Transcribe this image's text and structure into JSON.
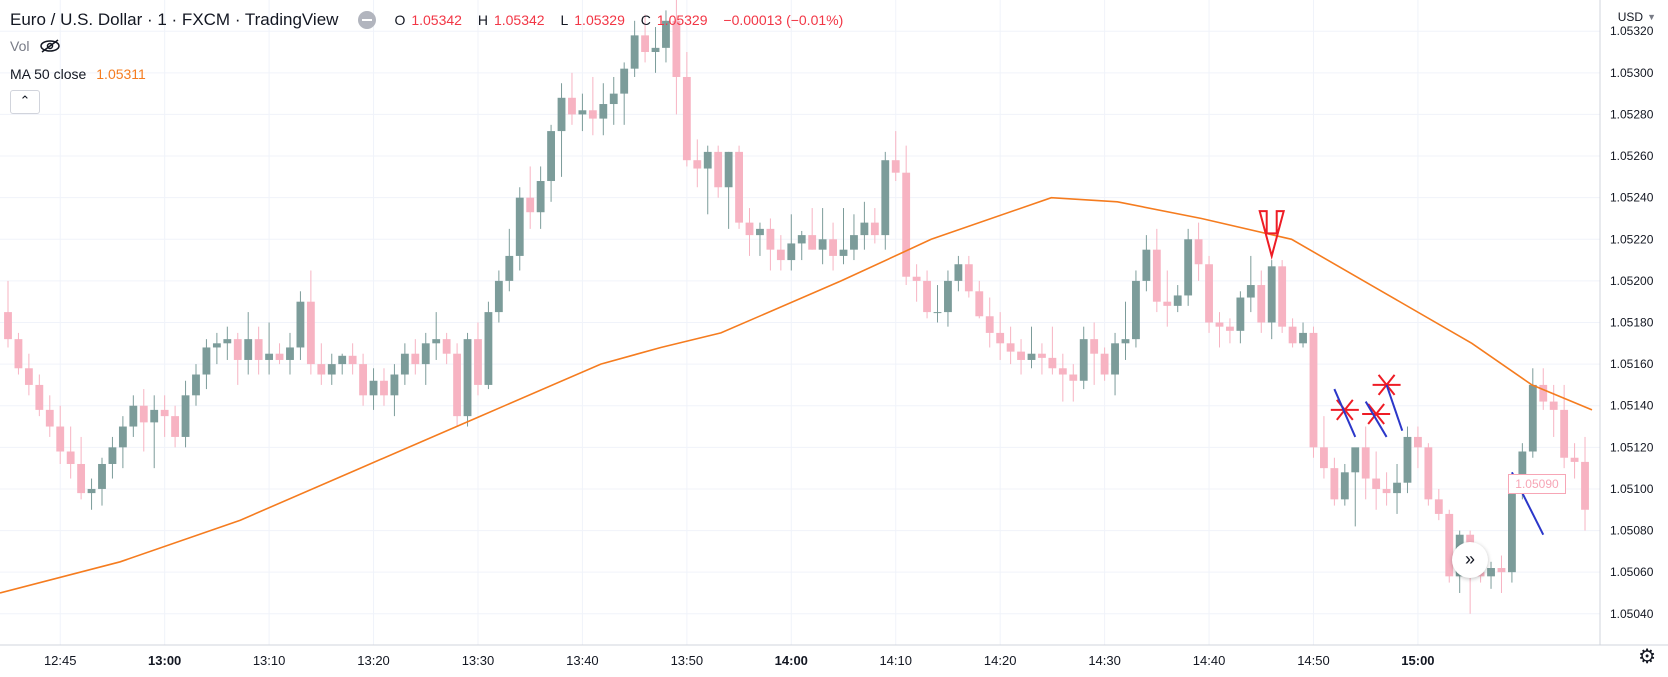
{
  "legend": {
    "symbol": "Euro / U.S. Dollar · 1 · FXCM · TradingView",
    "open_label": "O",
    "open": "1.05342",
    "high_label": "H",
    "high": "1.05342",
    "low_label": "L",
    "low": "1.05329",
    "close_label": "C",
    "close": "1.05329",
    "change": "−0.00013 (−0.01%)"
  },
  "vol_label": "Vol",
  "ma": {
    "label": "MA 50 close",
    "value": "1.05311"
  },
  "currency": "USD",
  "last_price": "1.05090",
  "scroll_icon": "double-chevron-right-icon",
  "settings_icon": "gear-icon",
  "colors": {
    "up": "#7c9c9a",
    "down": "#f7b3c2",
    "ma": "#f57c1f",
    "annot_red": "#ee1c25",
    "annot_blue": "#2b37c9"
  },
  "chart_data": {
    "type": "candlestick",
    "title": "Euro / U.S. Dollar · 1 · FXCM · TradingView",
    "y_range": [
      1.05025,
      1.05335
    ],
    "y_ticks": [
      "1.05320",
      "1.05300",
      "1.05280",
      "1.05260",
      "1.05240",
      "1.05220",
      "1.05200",
      "1.05180",
      "1.05160",
      "1.05140",
      "1.05120",
      "1.05100",
      "1.05080",
      "1.05060",
      "1.05040"
    ],
    "x_ticks": [
      {
        "label": "12:45",
        "bold": false
      },
      {
        "label": "13:00",
        "bold": true
      },
      {
        "label": "13:10",
        "bold": false
      },
      {
        "label": "13:20",
        "bold": false
      },
      {
        "label": "13:30",
        "bold": false
      },
      {
        "label": "13:40",
        "bold": false
      },
      {
        "label": "13:50",
        "bold": false
      },
      {
        "label": "14:00",
        "bold": true
      },
      {
        "label": "14:10",
        "bold": false
      },
      {
        "label": "14:20",
        "bold": false
      },
      {
        "label": "14:30",
        "bold": false
      },
      {
        "label": "14:40",
        "bold": false
      },
      {
        "label": "14:50",
        "bold": false
      },
      {
        "label": "15:00",
        "bold": true
      }
    ],
    "candles_ohlc": [
      [
        1.05185,
        1.052,
        1.05168,
        1.05172
      ],
      [
        1.05172,
        1.05175,
        1.05155,
        1.05158
      ],
      [
        1.05158,
        1.05165,
        1.05145,
        1.0515
      ],
      [
        1.0515,
        1.05155,
        1.05135,
        1.05138
      ],
      [
        1.05138,
        1.05145,
        1.05125,
        1.0513
      ],
      [
        1.0513,
        1.0514,
        1.05112,
        1.05118
      ],
      [
        1.05118,
        1.0513,
        1.05105,
        1.05112
      ],
      [
        1.05112,
        1.05125,
        1.05095,
        1.05098
      ],
      [
        1.05098,
        1.05105,
        1.0509,
        1.051
      ],
      [
        1.051,
        1.05115,
        1.05092,
        1.05112
      ],
      [
        1.05112,
        1.05125,
        1.05105,
        1.0512
      ],
      [
        1.0512,
        1.05135,
        1.0511,
        1.0513
      ],
      [
        1.0513,
        1.05145,
        1.05125,
        1.0514
      ],
      [
        1.0514,
        1.05148,
        1.05118,
        1.05132
      ],
      [
        1.05132,
        1.05145,
        1.0511,
        1.05138
      ],
      [
        1.05138,
        1.05145,
        1.05125,
        1.05135
      ],
      [
        1.05135,
        1.0514,
        1.0512,
        1.05125
      ],
      [
        1.05125,
        1.05152,
        1.0512,
        1.05145
      ],
      [
        1.05145,
        1.0516,
        1.0514,
        1.05155
      ],
      [
        1.05155,
        1.05172,
        1.05148,
        1.05168
      ],
      [
        1.05168,
        1.05175,
        1.0516,
        1.0517
      ],
      [
        1.0517,
        1.05178,
        1.05162,
        1.05172
      ],
      [
        1.05172,
        1.05175,
        1.0515,
        1.05162
      ],
      [
        1.05162,
        1.05185,
        1.05155,
        1.05172
      ],
      [
        1.05172,
        1.05178,
        1.05155,
        1.05162
      ],
      [
        1.05162,
        1.0518,
        1.05155,
        1.05165
      ],
      [
        1.05165,
        1.0517,
        1.0516,
        1.05162
      ],
      [
        1.05162,
        1.05175,
        1.05155,
        1.05168
      ],
      [
        1.05168,
        1.05195,
        1.05162,
        1.0519
      ],
      [
        1.0519,
        1.05205,
        1.05155,
        1.0516
      ],
      [
        1.0516,
        1.0517,
        1.0515,
        1.05155
      ],
      [
        1.05155,
        1.05165,
        1.0515,
        1.0516
      ],
      [
        1.0516,
        1.05165,
        1.05155,
        1.05164
      ],
      [
        1.05164,
        1.0517,
        1.05155,
        1.0516
      ],
      [
        1.0516,
        1.05165,
        1.0514,
        1.05145
      ],
      [
        1.05145,
        1.05158,
        1.05138,
        1.05152
      ],
      [
        1.05152,
        1.05158,
        1.0514,
        1.05145
      ],
      [
        1.05145,
        1.0516,
        1.05135,
        1.05155
      ],
      [
        1.05155,
        1.0517,
        1.0515,
        1.05165
      ],
      [
        1.05165,
        1.05172,
        1.05155,
        1.0516
      ],
      [
        1.0516,
        1.05175,
        1.0515,
        1.0517
      ],
      [
        1.0517,
        1.05185,
        1.05162,
        1.05172
      ],
      [
        1.05172,
        1.05175,
        1.0516,
        1.05165
      ],
      [
        1.05165,
        1.0517,
        1.0513,
        1.05135
      ],
      [
        1.05135,
        1.05175,
        1.0513,
        1.05172
      ],
      [
        1.05172,
        1.0518,
        1.05145,
        1.0515
      ],
      [
        1.0515,
        1.0519,
        1.05148,
        1.05185
      ],
      [
        1.05185,
        1.05205,
        1.0518,
        1.052
      ],
      [
        1.052,
        1.05225,
        1.05195,
        1.05212
      ],
      [
        1.05212,
        1.05245,
        1.05205,
        1.0524
      ],
      [
        1.0524,
        1.05255,
        1.05225,
        1.05233
      ],
      [
        1.05233,
        1.05255,
        1.05225,
        1.05248
      ],
      [
        1.05248,
        1.05275,
        1.05238,
        1.05272
      ],
      [
        1.05272,
        1.05295,
        1.0525,
        1.05288
      ],
      [
        1.05288,
        1.053,
        1.05275,
        1.0528
      ],
      [
        1.0528,
        1.0529,
        1.05272,
        1.05282
      ],
      [
        1.05282,
        1.05298,
        1.0527,
        1.05278
      ],
      [
        1.05278,
        1.05295,
        1.0527,
        1.05285
      ],
      [
        1.05285,
        1.05298,
        1.05275,
        1.0529
      ],
      [
        1.0529,
        1.05305,
        1.05275,
        1.05302
      ],
      [
        1.05302,
        1.05325,
        1.05298,
        1.05318
      ],
      [
        1.05318,
        1.05328,
        1.05305,
        1.0531
      ],
      [
        1.0531,
        1.05322,
        1.053,
        1.05312
      ],
      [
        1.05312,
        1.0533,
        1.05305,
        1.05325
      ],
      [
        1.05325,
        1.05335,
        1.0528,
        1.05298
      ],
      [
        1.05298,
        1.0531,
        1.05255,
        1.05258
      ],
      [
        1.05258,
        1.05268,
        1.05245,
        1.05254
      ],
      [
        1.05254,
        1.05265,
        1.05232,
        1.05262
      ],
      [
        1.05262,
        1.05265,
        1.0524,
        1.05245
      ],
      [
        1.05245,
        1.05262,
        1.05225,
        1.05262
      ],
      [
        1.05262,
        1.05265,
        1.05225,
        1.05228
      ],
      [
        1.05228,
        1.05235,
        1.05212,
        1.05222
      ],
      [
        1.05222,
        1.05228,
        1.05212,
        1.05225
      ],
      [
        1.05225,
        1.0523,
        1.05205,
        1.05215
      ],
      [
        1.05215,
        1.05222,
        1.05205,
        1.0521
      ],
      [
        1.0521,
        1.05232,
        1.05205,
        1.05218
      ],
      [
        1.05218,
        1.05224,
        1.0521,
        1.05222
      ],
      [
        1.05222,
        1.05235,
        1.05215,
        1.05215
      ],
      [
        1.05215,
        1.05235,
        1.05208,
        1.0522
      ],
      [
        1.0522,
        1.05228,
        1.05205,
        1.05212
      ],
      [
        1.05212,
        1.05235,
        1.05208,
        1.05215
      ],
      [
        1.05215,
        1.05232,
        1.0521,
        1.05222
      ],
      [
        1.05222,
        1.05238,
        1.05215,
        1.05228
      ],
      [
        1.05228,
        1.05235,
        1.05218,
        1.05222
      ],
      [
        1.05222,
        1.05262,
        1.05215,
        1.05258
      ],
      [
        1.05258,
        1.05272,
        1.05248,
        1.05252
      ],
      [
        1.05252,
        1.05265,
        1.05198,
        1.05202
      ],
      [
        1.05202,
        1.05208,
        1.0519,
        1.052
      ],
      [
        1.052,
        1.05205,
        1.05182,
        1.05185
      ],
      [
        1.05185,
        1.05198,
        1.0518,
        1.05185
      ],
      [
        1.05185,
        1.05205,
        1.05178,
        1.052
      ],
      [
        1.052,
        1.05212,
        1.05195,
        1.05208
      ],
      [
        1.05208,
        1.05212,
        1.05192,
        1.05195
      ],
      [
        1.05195,
        1.052,
        1.05182,
        1.05183
      ],
      [
        1.05183,
        1.05192,
        1.05168,
        1.05175
      ],
      [
        1.05175,
        1.05185,
        1.05162,
        1.0517
      ],
      [
        1.0517,
        1.05178,
        1.0516,
        1.05166
      ],
      [
        1.05166,
        1.05172,
        1.05155,
        1.05162
      ],
      [
        1.05162,
        1.05178,
        1.05158,
        1.05165
      ],
      [
        1.05165,
        1.0517,
        1.05155,
        1.05163
      ],
      [
        1.05163,
        1.05178,
        1.05155,
        1.05158
      ],
      [
        1.05158,
        1.05165,
        1.05142,
        1.05155
      ],
      [
        1.05155,
        1.0516,
        1.05142,
        1.05152
      ],
      [
        1.05152,
        1.05178,
        1.05148,
        1.05172
      ],
      [
        1.05172,
        1.0518,
        1.0515,
        1.05165
      ],
      [
        1.05165,
        1.05168,
        1.05152,
        1.05155
      ],
      [
        1.05155,
        1.05175,
        1.05145,
        1.0517
      ],
      [
        1.0517,
        1.0519,
        1.05162,
        1.05172
      ],
      [
        1.05172,
        1.05205,
        1.05168,
        1.052
      ],
      [
        1.052,
        1.05222,
        1.05195,
        1.05215
      ],
      [
        1.05215,
        1.05225,
        1.05185,
        1.0519
      ],
      [
        1.0519,
        1.05205,
        1.05178,
        1.05188
      ],
      [
        1.05188,
        1.05198,
        1.05185,
        1.05193
      ],
      [
        1.05193,
        1.05225,
        1.05188,
        1.0522
      ],
      [
        1.0522,
        1.05228,
        1.052,
        1.05208
      ],
      [
        1.05208,
        1.05212,
        1.05175,
        1.0518
      ],
      [
        1.0518,
        1.05185,
        1.05168,
        1.05178
      ],
      [
        1.05178,
        1.05182,
        1.0517,
        1.05176
      ],
      [
        1.05176,
        1.05195,
        1.0517,
        1.05192
      ],
      [
        1.05192,
        1.05212,
        1.05185,
        1.05198
      ],
      [
        1.05198,
        1.05205,
        1.05175,
        1.0518
      ],
      [
        1.0518,
        1.0521,
        1.05172,
        1.05207
      ],
      [
        1.05207,
        1.0521,
        1.05175,
        1.05178
      ],
      [
        1.05178,
        1.05182,
        1.05168,
        1.0517
      ],
      [
        1.0517,
        1.0518,
        1.05168,
        1.05175
      ],
      [
        1.05175,
        1.05178,
        1.05115,
        1.0512
      ],
      [
        1.0512,
        1.05135,
        1.05105,
        1.0511
      ],
      [
        1.0511,
        1.05115,
        1.05092,
        1.05095
      ],
      [
        1.05095,
        1.05112,
        1.05092,
        1.05108
      ],
      [
        1.05108,
        1.05118,
        1.05082,
        1.0512
      ],
      [
        1.0512,
        1.0513,
        1.05095,
        1.05105
      ],
      [
        1.05105,
        1.05118,
        1.0509,
        1.051
      ],
      [
        1.051,
        1.05108,
        1.05092,
        1.05098
      ],
      [
        1.05098,
        1.05112,
        1.05088,
        1.05103
      ],
      [
        1.05103,
        1.0513,
        1.05098,
        1.05125
      ],
      [
        1.05125,
        1.0513,
        1.0511,
        1.0512
      ],
      [
        1.0512,
        1.05122,
        1.05092,
        1.05095
      ],
      [
        1.05095,
        1.051,
        1.05085,
        1.05088
      ],
      [
        1.05088,
        1.0509,
        1.05055,
        1.05058
      ],
      [
        1.05058,
        1.0508,
        1.0505,
        1.05078
      ],
      [
        1.05078,
        1.0508,
        1.0504,
        1.0506
      ],
      [
        1.0506,
        1.05068,
        1.05055,
        1.05058
      ],
      [
        1.05058,
        1.05065,
        1.05052,
        1.05062
      ],
      [
        1.05062,
        1.05068,
        1.0505,
        1.0506
      ],
      [
        1.0506,
        1.05102,
        1.05055,
        1.05098
      ],
      [
        1.05098,
        1.05122,
        1.05095,
        1.05118
      ],
      [
        1.05118,
        1.05158,
        1.05115,
        1.0515
      ],
      [
        1.0515,
        1.05158,
        1.05138,
        1.05142
      ],
      [
        1.05142,
        1.0515,
        1.05125,
        1.05138
      ],
      [
        1.05138,
        1.0515,
        1.0511,
        1.05115
      ],
      [
        1.05115,
        1.05122,
        1.05105,
        1.05113
      ],
      [
        1.05113,
        1.05125,
        1.0508,
        1.0509
      ]
    ],
    "ma_label": "MA 50 close",
    "ma50_points": [
      [
        0,
        1.0505
      ],
      [
        20,
        1.05065
      ],
      [
        40,
        1.05085
      ],
      [
        60,
        1.0511
      ],
      [
        80,
        1.05135
      ],
      [
        100,
        1.0516
      ],
      [
        110,
        1.05168
      ],
      [
        120,
        1.05175
      ],
      [
        140,
        1.052
      ],
      [
        155,
        1.0522
      ],
      [
        175,
        1.0524
      ],
      [
        186,
        1.05238
      ],
      [
        200,
        1.0523
      ],
      [
        215,
        1.0522
      ],
      [
        230,
        1.05195
      ],
      [
        245,
        1.0517
      ],
      [
        255,
        1.0515
      ],
      [
        265,
        1.05138
      ]
    ],
    "annotations": [
      {
        "type": "down-arrow",
        "color": "red",
        "at_candle": 121
      },
      {
        "type": "cross-star",
        "color": "red",
        "at_candle": 128
      },
      {
        "type": "cross-star",
        "color": "red",
        "at_candle": 131
      },
      {
        "type": "cross-star",
        "color": "red",
        "at_candle": 132
      },
      {
        "type": "line",
        "color": "blue"
      },
      {
        "type": "line",
        "color": "blue"
      },
      {
        "type": "line",
        "color": "blue"
      },
      {
        "type": "line",
        "color": "blue"
      }
    ]
  }
}
